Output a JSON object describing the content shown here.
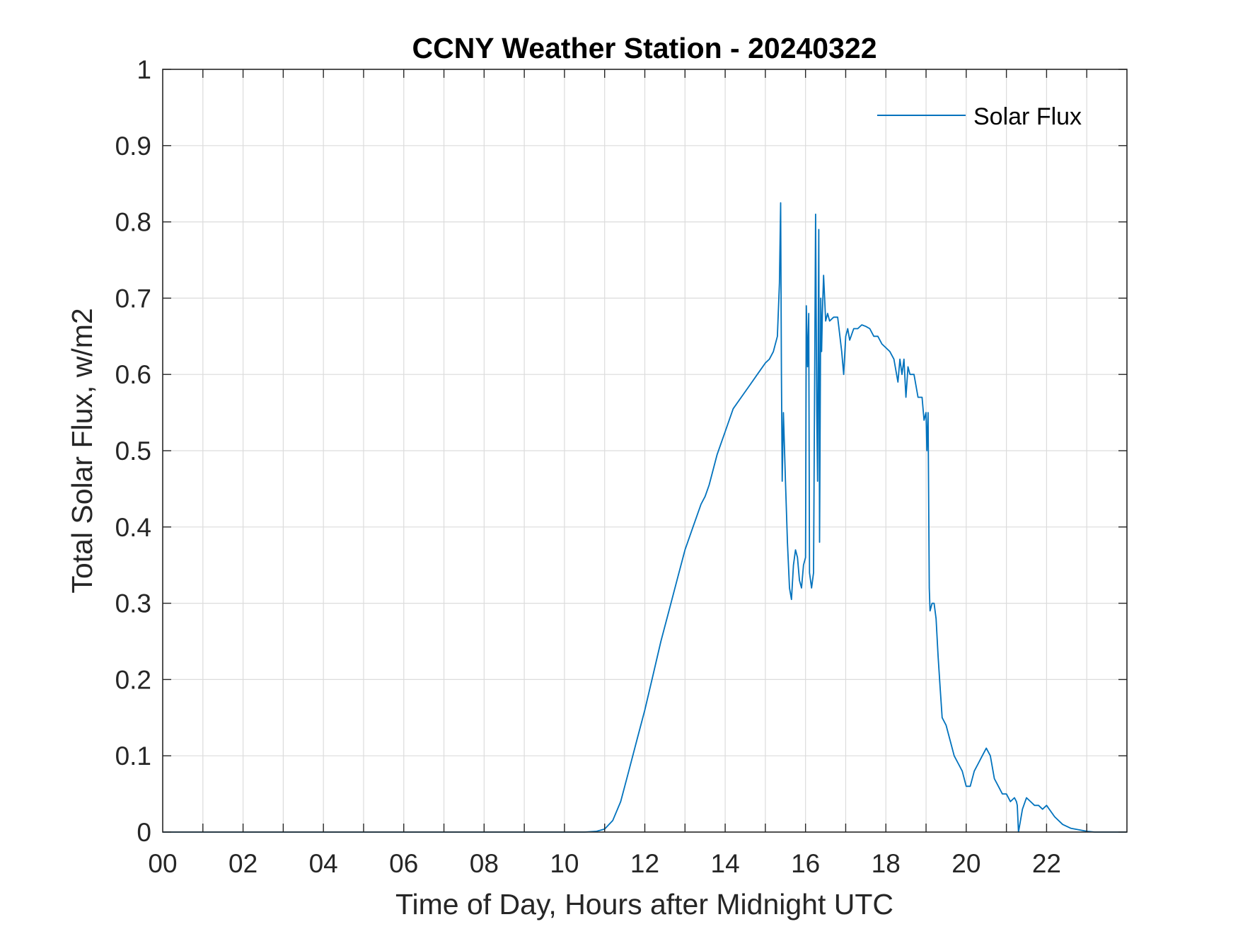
{
  "chart_data": {
    "type": "line",
    "title": "CCNY Weather Station - 20240322",
    "xlabel": "Time of Day, Hours after Midnight UTC",
    "ylabel": "Total Solar Flux, w/m2",
    "xlim": [
      0,
      24
    ],
    "ylim": [
      0,
      1
    ],
    "grid": true,
    "legend_position": "top-right",
    "x_ticks": [
      0,
      2,
      4,
      6,
      8,
      10,
      12,
      14,
      16,
      18,
      20,
      22
    ],
    "x_tick_labels": [
      "00",
      "02",
      "04",
      "06",
      "08",
      "10",
      "12",
      "14",
      "16",
      "18",
      "20",
      "22"
    ],
    "y_ticks": [
      0,
      0.1,
      0.2,
      0.3,
      0.4,
      0.5,
      0.6,
      0.7,
      0.8,
      0.9,
      1
    ],
    "y_tick_labels": [
      "0",
      "0.1",
      "0.2",
      "0.3",
      "0.4",
      "0.5",
      "0.6",
      "0.7",
      "0.8",
      "0.9",
      "1"
    ],
    "series": [
      {
        "name": "Solar Flux",
        "color": "#0072BD",
        "x": [
          0,
          10.5,
          10.8,
          11.0,
          11.2,
          11.4,
          11.6,
          11.8,
          12.0,
          12.2,
          12.4,
          12.6,
          12.8,
          13.0,
          13.2,
          13.4,
          13.5,
          13.6,
          13.8,
          14.0,
          14.2,
          14.4,
          14.6,
          14.8,
          15.0,
          15.1,
          15.2,
          15.3,
          15.35,
          15.38,
          15.4,
          15.42,
          15.45,
          15.5,
          15.55,
          15.6,
          15.65,
          15.7,
          15.75,
          15.8,
          15.85,
          15.9,
          15.95,
          16.0,
          16.02,
          16.05,
          16.08,
          16.1,
          16.15,
          16.2,
          16.25,
          16.28,
          16.3,
          16.33,
          16.35,
          16.38,
          16.4,
          16.42,
          16.45,
          16.5,
          16.55,
          16.6,
          16.7,
          16.8,
          16.9,
          16.95,
          17.0,
          17.05,
          17.1,
          17.2,
          17.3,
          17.4,
          17.5,
          17.6,
          17.7,
          17.8,
          17.9,
          18.0,
          18.1,
          18.2,
          18.3,
          18.35,
          18.4,
          18.45,
          18.5,
          18.55,
          18.6,
          18.7,
          18.8,
          18.9,
          18.95,
          19.0,
          19.02,
          19.05,
          19.08,
          19.1,
          19.15,
          19.2,
          19.25,
          19.3,
          19.35,
          19.4,
          19.5,
          19.6,
          19.7,
          19.8,
          19.9,
          20.0,
          20.1,
          20.2,
          20.3,
          20.4,
          20.5,
          20.6,
          20.7,
          20.8,
          20.9,
          21.0,
          21.1,
          21.2,
          21.25,
          21.27,
          21.3,
          21.4,
          21.5,
          21.6,
          21.7,
          21.8,
          21.9,
          22.0,
          22.2,
          22.4,
          22.6,
          22.8,
          23.0,
          23.2,
          23.4,
          24.0
        ],
        "values": [
          0,
          0,
          0.001,
          0.004,
          0.015,
          0.04,
          0.08,
          0.12,
          0.16,
          0.205,
          0.25,
          0.29,
          0.33,
          0.37,
          0.4,
          0.43,
          0.44,
          0.455,
          0.495,
          0.525,
          0.555,
          0.57,
          0.585,
          0.6,
          0.615,
          0.62,
          0.63,
          0.65,
          0.72,
          0.825,
          0.6,
          0.46,
          0.55,
          0.46,
          0.38,
          0.32,
          0.305,
          0.35,
          0.37,
          0.36,
          0.33,
          0.32,
          0.35,
          0.36,
          0.69,
          0.61,
          0.68,
          0.34,
          0.32,
          0.34,
          0.81,
          0.55,
          0.46,
          0.79,
          0.38,
          0.7,
          0.63,
          0.68,
          0.73,
          0.67,
          0.68,
          0.67,
          0.675,
          0.675,
          0.63,
          0.6,
          0.65,
          0.66,
          0.645,
          0.66,
          0.66,
          0.665,
          0.663,
          0.66,
          0.65,
          0.65,
          0.64,
          0.635,
          0.63,
          0.62,
          0.59,
          0.62,
          0.6,
          0.62,
          0.57,
          0.61,
          0.6,
          0.6,
          0.57,
          0.57,
          0.54,
          0.55,
          0.5,
          0.55,
          0.32,
          0.29,
          0.3,
          0.3,
          0.28,
          0.23,
          0.19,
          0.15,
          0.14,
          0.12,
          0.1,
          0.09,
          0.08,
          0.06,
          0.06,
          0.08,
          0.09,
          0.1,
          0.11,
          0.1,
          0.07,
          0.06,
          0.05,
          0.05,
          0.04,
          0.045,
          0.04,
          0.035,
          0,
          0.03,
          0.045,
          0.04,
          0.035,
          0.035,
          0.03,
          0.035,
          0.02,
          0.01,
          0.005,
          0.003,
          0.001,
          0,
          0,
          0
        ]
      }
    ]
  }
}
